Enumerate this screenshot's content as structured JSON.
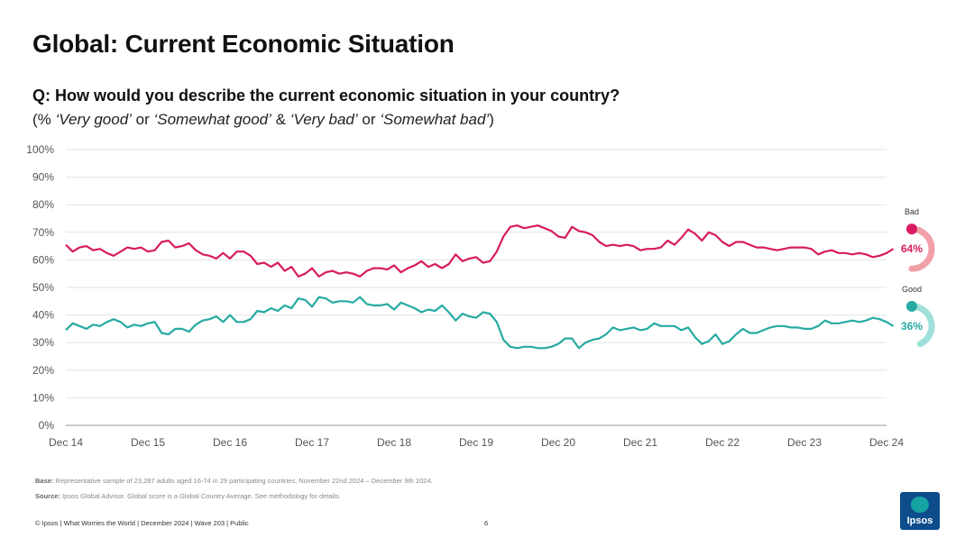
{
  "title": "Global: Current Economic Situation",
  "question": "Q: How would you describe the current economic situation in your country?",
  "subtitle": {
    "open": "(% ",
    "very_good": "‘Very good’",
    "or1": " or ",
    "somewhat_good": "‘Somewhat good’",
    "amp": " & ",
    "very_bad": "‘Very bad’",
    "or2": " or ",
    "somewhat_bad": "‘Somewhat bad’",
    "close": ")"
  },
  "footnotes": {
    "base_label": "Base:",
    "base_text": " Representative sample of 23,287 adults aged 16-74 in 29 participating countries, November 22nd 2024 – December 9th 2024.",
    "source_label": "Source:",
    "source_text": " Ipsos Global Advisor. Global score is a Global Country Average. See methodology for details."
  },
  "copyright": "© Ipsos | What Worries the World | December 2024 | Wave 203 | Public",
  "page_number": "6",
  "logo_text": "Ipsos",
  "colors": {
    "bad": "#d81b60",
    "good": "#26aaa2",
    "bad_light": "#f2a0a8",
    "good_light": "#9fe0da",
    "grid": "#e3e3e3",
    "axis": "#999999"
  },
  "chart_data": {
    "type": "line",
    "title": "Global: Current Economic Situation",
    "x_labels": [
      "Dec 14",
      "Dec 15",
      "Dec 16",
      "Dec 17",
      "Dec 18",
      "Dec 19",
      "Dec 20",
      "Dec 21",
      "Dec 22",
      "Dec 23",
      "Dec 24"
    ],
    "y_ticks": [
      "0%",
      "10%",
      "20%",
      "30%",
      "40%",
      "50%",
      "60%",
      "70%",
      "80%",
      "90%",
      "100%"
    ],
    "ylim": [
      0,
      100
    ],
    "xlim": [
      0,
      120
    ],
    "grid": true,
    "series": [
      {
        "name": "Bad",
        "color": "#d81b60",
        "end_label": "64%",
        "end_value": 64,
        "values": [
          65.5,
          63,
          64.5,
          65,
          63.5,
          64,
          62.5,
          61.5,
          63,
          64.5,
          64,
          64.5,
          63,
          63.5,
          66.5,
          67,
          64.5,
          65,
          66,
          63.5,
          62,
          61.5,
          60.5,
          62.5,
          60.5,
          63,
          63,
          61.5,
          58.5,
          59,
          57.5,
          59,
          56,
          57.5,
          54,
          55,
          57,
          54,
          55.5,
          56,
          55,
          55.5,
          55,
          54,
          56,
          57,
          57,
          56.5,
          58,
          55.5,
          57,
          58,
          59.5,
          57.5,
          58.5,
          57,
          58.5,
          62,
          59.5,
          60.5,
          61,
          59,
          59.5,
          63,
          68.5,
          72,
          72.5,
          71.5,
          72,
          72.5,
          71.5,
          70.5,
          68.5,
          68,
          72,
          70.5,
          70,
          69,
          66.5,
          65,
          65.5,
          65,
          65.5,
          65,
          63.5,
          64,
          64,
          64.5,
          67,
          65.5,
          68,
          71,
          69.5,
          67,
          70,
          69,
          66.5,
          65,
          66.5,
          66.5,
          65.5,
          64.5,
          64.5,
          64,
          63.5,
          64,
          64.5,
          64.5,
          64.5,
          64,
          62,
          63,
          63.5,
          62.5,
          62.5,
          62,
          62.5,
          62,
          61,
          61.5,
          62.5,
          64
        ]
      },
      {
        "name": "Good",
        "color": "#26aaa2",
        "end_label": "36%",
        "end_value": 36,
        "values": [
          34.5,
          37,
          36,
          35,
          36.5,
          36,
          37.5,
          38.5,
          37.5,
          35.5,
          36.5,
          36,
          37,
          37.5,
          33.5,
          33,
          35,
          35,
          34,
          36.5,
          38,
          38.5,
          39.5,
          37.5,
          40,
          37.5,
          37.5,
          38.5,
          41.5,
          41,
          42.5,
          41.5,
          43.5,
          42.5,
          46,
          45.5,
          43,
          46.5,
          46,
          44.5,
          45,
          45,
          44.5,
          46.5,
          44,
          43.5,
          43.5,
          44,
          42,
          44.5,
          43.5,
          42.5,
          41,
          42,
          41.5,
          43.5,
          41,
          38,
          40.5,
          39.5,
          39,
          41,
          40.5,
          37.5,
          31,
          28.5,
          28,
          28.5,
          28.5,
          28,
          28,
          28.5,
          29.5,
          31.5,
          31.5,
          28,
          30,
          31,
          31.5,
          33,
          35.5,
          34.5,
          35,
          35.5,
          34.5,
          35,
          37,
          36,
          36,
          36,
          34.5,
          35.5,
          32,
          29.5,
          30.5,
          33,
          29.5,
          30.5,
          33,
          35,
          33.5,
          33.5,
          34.5,
          35.5,
          36,
          36,
          35.5,
          35.5,
          35,
          35,
          36,
          38,
          37,
          37,
          37.5,
          38,
          37.5,
          38,
          39,
          38.5,
          37.5,
          36
        ]
      }
    ]
  }
}
